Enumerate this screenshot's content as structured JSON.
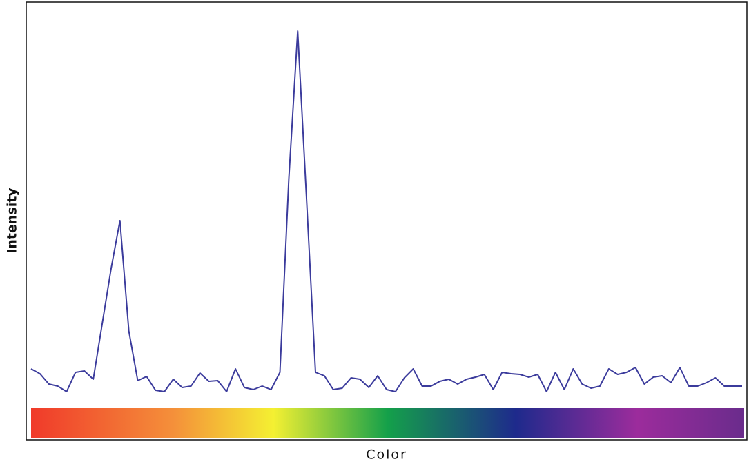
{
  "chart_data": {
    "type": "line",
    "x_label": "Color",
    "y_label": "Intensity",
    "color": "#3b3b9c",
    "ylim": [
      0,
      635
    ],
    "values": [
      103,
      96,
      81,
      78,
      70,
      98,
      100,
      88,
      168,
      248,
      318,
      158,
      86,
      92,
      72,
      70,
      88,
      76,
      78,
      97,
      85,
      86,
      70,
      103,
      76,
      73,
      78,
      73,
      98,
      378,
      593,
      348,
      98,
      93,
      73,
      75,
      90,
      88,
      76,
      93,
      73,
      70,
      90,
      103,
      78,
      78,
      85,
      88,
      81,
      88,
      91,
      95,
      73,
      98,
      96,
      95,
      91,
      95,
      70,
      98,
      73,
      103,
      81,
      75,
      78,
      103,
      95,
      98,
      105,
      81,
      91,
      93,
      83,
      105,
      78,
      78,
      83,
      90,
      78,
      78,
      78
    ]
  }
}
